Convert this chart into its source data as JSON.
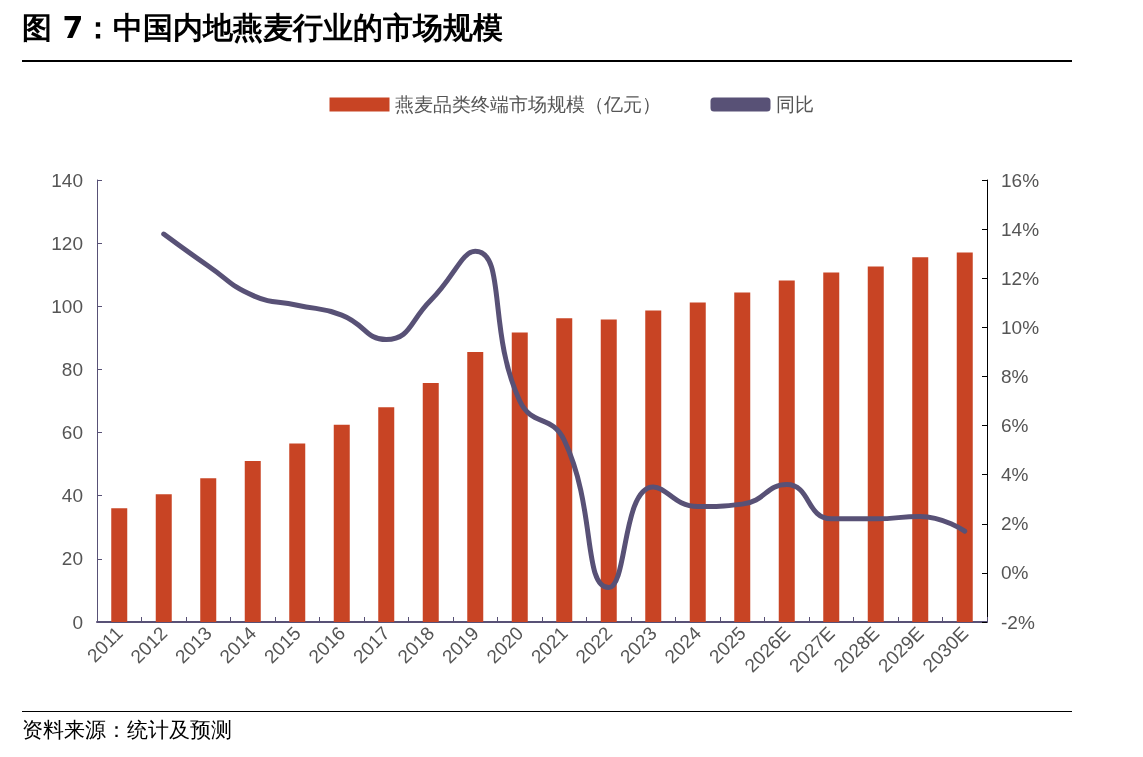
{
  "chart_data": {
    "type": "bar",
    "title": "图 7：中国内地燕麦行业的市场规模",
    "categories": [
      "2011",
      "2012",
      "2013",
      "2014",
      "2015",
      "2016",
      "2017",
      "2018",
      "2019",
      "2020",
      "2021",
      "2022",
      "2023",
      "2024",
      "2025",
      "2026E",
      "2027E",
      "2028E",
      "2029E",
      "2030E"
    ],
    "series": [
      {
        "name": "燕麦品类终端市场规模（亿元）",
        "color": "#c84424",
        "values": [
          36,
          40.5,
          45.5,
          51,
          56.5,
          62.5,
          68,
          75.7,
          85.5,
          91.7,
          96.2,
          95.8,
          98.7,
          101.2,
          104.4,
          108.2,
          110.7,
          112.6,
          115.5,
          117
        ]
      },
      {
        "name": "同比",
        "type": "line",
        "axis": "y2",
        "color": "#585176",
        "values": [
          null,
          13.8,
          12.5,
          11.3,
          10.9,
          10.5,
          9.5,
          11.1,
          13.1,
          7.0,
          5.4,
          -0.6,
          3.5,
          2.7,
          2.8,
          3.6,
          2.2,
          2.2,
          2.3,
          1.7
        ]
      }
    ],
    "ylim": [
      0,
      140
    ],
    "yticks": [
      0,
      20,
      40,
      60,
      80,
      100,
      120,
      140
    ],
    "y2lim": [
      -2,
      16
    ],
    "y2ticks": [
      {
        "value": -2,
        "label": "-2%"
      },
      {
        "value": 0,
        "label": "0%"
      },
      {
        "value": 2,
        "label": "2%"
      },
      {
        "value": 4,
        "label": "4%"
      },
      {
        "value": 6,
        "label": "6%"
      },
      {
        "value": 8,
        "label": "8%"
      },
      {
        "value": 10,
        "label": "10%"
      },
      {
        "value": 12,
        "label": "12%"
      },
      {
        "value": 14,
        "label": "14%"
      },
      {
        "value": 16,
        "label": "16%"
      }
    ],
    "grid": false,
    "legend": "top",
    "marker": "none",
    "line_style": "solid",
    "annotations": [
      "资料来源：统计及预测"
    ]
  }
}
